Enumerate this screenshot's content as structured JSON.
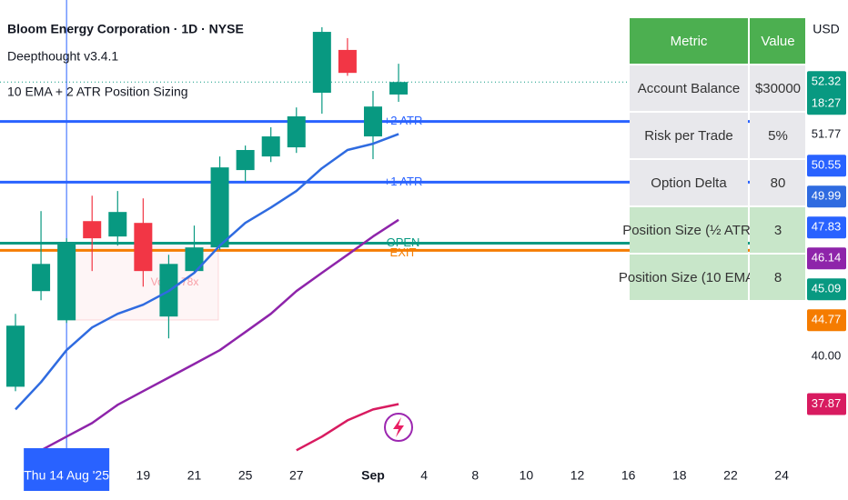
{
  "chart_data": {
    "type": "candlestick",
    "title": "Bloom Energy Corporation · 1D · NYSE",
    "indicator": "Deepthought v3.4.1",
    "subtitle": "10 EMA + 2 ATR Position Sizing",
    "currency": "USD",
    "countdown": "18:27",
    "annotation": "Vol: 0.78x",
    "crosshair_category": 2,
    "categories": [
      null,
      null,
      "Thu 14 Aug '25",
      null,
      null,
      "19",
      null,
      "21",
      null,
      "25",
      null,
      "27",
      null,
      null,
      "Sep",
      null,
      "4",
      null,
      "8",
      null,
      "10",
      null,
      "12",
      null,
      "16",
      null,
      "18",
      null,
      "22",
      null,
      "24"
    ],
    "candles": {
      "up_color": "#089981",
      "down_color": "#f23645",
      "open": [
        38.65,
        42.94,
        41.63,
        46.08,
        45.39,
        46.0,
        41.8,
        43.84,
        44.9,
        48.37,
        48.98,
        49.39,
        51.84,
        53.76,
        49.88,
        51.76,
        null,
        null,
        null,
        null,
        null,
        null,
        null,
        null,
        null,
        null,
        null,
        null,
        null,
        null,
        null
      ],
      "high": [
        41.92,
        46.53,
        45.31,
        47.22,
        47.43,
        47.1,
        44.57,
        45.88,
        48.98,
        49.47,
        50.29,
        51.18,
        54.78,
        54.29,
        51.92,
        53.14,
        null,
        null,
        null,
        null,
        null,
        null,
        null,
        null,
        null,
        null,
        null,
        null,
        null,
        null,
        null
      ],
      "low": [
        38.45,
        42.53,
        41.51,
        43.84,
        44.98,
        43.14,
        40.82,
        43.76,
        44.78,
        47.84,
        48.73,
        49.14,
        50.9,
        52.6,
        48.86,
        51.43,
        null,
        null,
        null,
        null,
        null,
        null,
        null,
        null,
        null,
        null,
        null,
        null,
        null,
        null,
        null
      ],
      "close": [
        41.39,
        44.16,
        45.14,
        45.31,
        46.49,
        43.84,
        44.16,
        44.9,
        48.49,
        49.27,
        49.88,
        50.78,
        54.57,
        52.73,
        51.22,
        52.32,
        null,
        null,
        null,
        null,
        null,
        null,
        null,
        null,
        null,
        null,
        null,
        null,
        null,
        null,
        null
      ]
    },
    "series": [
      {
        "color": "#2f6be0",
        "values": [
          37.63,
          38.86,
          40.29,
          41.31,
          41.92,
          42.33,
          42.94,
          43.76,
          44.98,
          46.0,
          46.69,
          47.43,
          48.45,
          49.27,
          49.55,
          49.99,
          null,
          null,
          null,
          null,
          null,
          null,
          null,
          null,
          null,
          null,
          null,
          null,
          null,
          null,
          null
        ]
      },
      {
        "color": "#8e24aa",
        "values": [
          null,
          35.8,
          36.41,
          37.02,
          37.84,
          38.45,
          39.06,
          39.67,
          40.29,
          41.1,
          41.92,
          42.94,
          43.76,
          44.57,
          45.39,
          46.14,
          null,
          null,
          null,
          null,
          null,
          null,
          null,
          null,
          null,
          null,
          null,
          null,
          null,
          null,
          null
        ]
      },
      {
        "color": "#d81b60",
        "values": [
          null,
          null,
          null,
          null,
          null,
          null,
          null,
          null,
          null,
          null,
          null,
          35.8,
          36.41,
          37.14,
          37.63,
          37.87,
          null,
          null,
          null,
          null,
          null,
          null,
          null,
          null,
          null,
          null,
          null,
          null,
          null,
          null,
          null
        ]
      }
    ],
    "levels": [
      {
        "name": "+2 ATR",
        "value": 50.55,
        "color": "#2962ff"
      },
      {
        "name": "+1 ATR",
        "value": 47.83,
        "color": "#2962ff"
      },
      {
        "name": "OPEN",
        "value": 45.09,
        "color": "#089981"
      },
      {
        "name": "EXIT",
        "value": 44.77,
        "color": "#f57c00"
      }
    ],
    "ylim": [
      35.2,
      56.0
    ],
    "yticks": [
      {
        "value": 40,
        "label": "40.00"
      },
      51.77
    ],
    "grid": false
  },
  "table": {
    "header_color": "#4caf50",
    "row_colors": [
      "#e8e8ec",
      "#e8e8ec",
      "#e8e8ec",
      "#c8e6c9",
      "#c8e6c9"
    ],
    "columns": [
      "Metric",
      "Value"
    ],
    "rows": [
      [
        "Account Balance",
        "$30000"
      ],
      [
        "Risk per Trade",
        "5%"
      ],
      [
        "Option Delta",
        "80"
      ],
      [
        "Position Size (½ ATR)",
        "3"
      ],
      [
        "Position Size (10 EMA)",
        "8"
      ]
    ]
  }
}
